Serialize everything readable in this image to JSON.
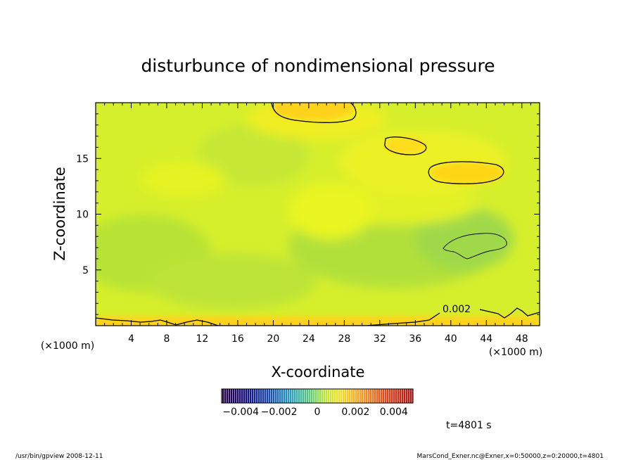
{
  "chart_data": {
    "type": "heatmap",
    "title": "disturbunce of nondimensional pressure",
    "xlabel": "X-coordinate",
    "ylabel": "Z-coordinate",
    "x_unit": "(×1000 m)",
    "z_unit": "(×1000 m)",
    "x_ticks": [
      "4",
      "8",
      "12",
      "16",
      "20",
      "24",
      "28",
      "32",
      "36",
      "40",
      "44",
      "48"
    ],
    "z_ticks": [
      "5",
      "10",
      "15"
    ],
    "xlim": [
      0,
      50
    ],
    "zlim": [
      0,
      20
    ],
    "colorbar": {
      "min": -0.005,
      "max": 0.005,
      "tick_labels": [
        "−0.004",
        "−0.002",
        "0",
        "0.002",
        "0.004"
      ]
    },
    "contour_label": "0.002",
    "time_label": "t=4801 s",
    "features": [
      {
        "kind": "positive_region",
        "x": [
          20,
          29
        ],
        "z": [
          18.3,
          20
        ],
        "level": 0.002
      },
      {
        "kind": "positive_region",
        "x": [
          32,
          37
        ],
        "z": [
          15.1,
          16.5
        ],
        "level": 0.002
      },
      {
        "kind": "positive_region",
        "x": [
          37,
          46
        ],
        "z": [
          12.5,
          14.5
        ],
        "level": 0.002
      },
      {
        "kind": "positive_region",
        "x": [
          0,
          50
        ],
        "z": [
          0,
          1.0
        ],
        "level": 0.002
      },
      {
        "kind": "negative_region",
        "x": [
          38.5,
          46
        ],
        "z": [
          5.7,
          8.2
        ],
        "level": -0.0005
      }
    ]
  },
  "footer": {
    "left": "/usr/bin/gpview   2008-12-11",
    "right": "MarsCond_Exner.nc@Exner,x=0:50000,z=0:20000,t=4801"
  }
}
